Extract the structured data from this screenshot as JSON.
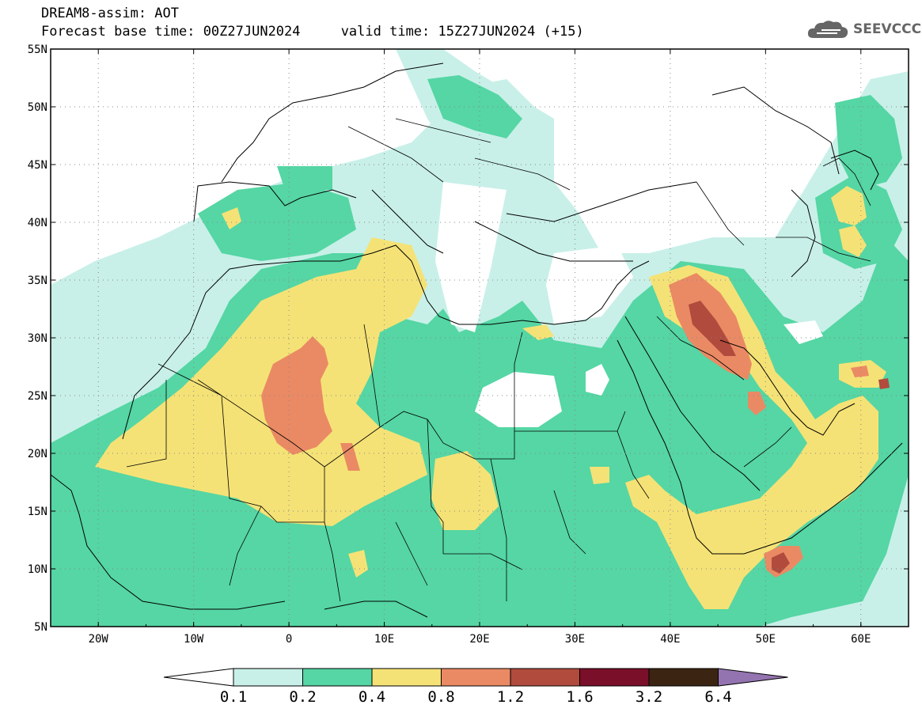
{
  "header": {
    "line1": "DREAM8-assim: AOT",
    "line2": "Forecast base time: 00Z27JUN2024     valid time: 15Z27JUN2024 (+15)"
  },
  "logo": {
    "text": "SEEVCCC",
    "icon": "cloud-icon"
  },
  "map": {
    "lon_range": [
      -25,
      65
    ],
    "lat_range": [
      5,
      55
    ],
    "lat_ticks": [
      "55N",
      "50N",
      "45N",
      "40N",
      "35N",
      "30N",
      "25N",
      "20N",
      "15N",
      "10N",
      "5N"
    ],
    "lon_ticks": [
      "20W",
      "10W",
      "0",
      "10E",
      "20E",
      "30E",
      "40E",
      "50E",
      "60E"
    ],
    "grid": true
  },
  "colorbar": {
    "labels": [
      "0.1",
      "0.2",
      "0.4",
      "0.8",
      "1.2",
      "1.6",
      "3.2",
      "6.4"
    ],
    "colors": [
      "#c8f0e8",
      "#55d6a4",
      "#f5e276",
      "#ea8a64",
      "#b04b3d",
      "#7a0f2a",
      "#3b2512",
      "#9474b0"
    ]
  }
}
